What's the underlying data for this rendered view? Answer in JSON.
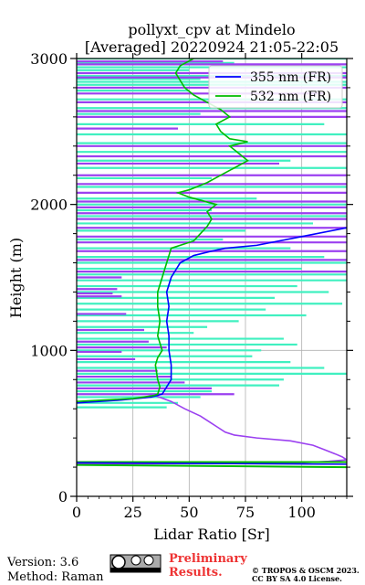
{
  "chart_data": {
    "type": "line",
    "title": "pollyxt_cpv at Mindelo",
    "subtitle": "[Averaged] 20220924 21:05-22:05",
    "xlabel": "Lidar Ratio [Sr]",
    "ylabel": "Height (m)",
    "xlim": [
      0,
      120
    ],
    "ylim": [
      0,
      3000
    ],
    "xticks": [
      "0",
      "25",
      "50",
      "75",
      "100"
    ],
    "yticks": [
      "0",
      "1000",
      "2000",
      "3000"
    ],
    "grid": true,
    "legend_position": "top-right",
    "series": [
      {
        "name": "355 nm (FR)",
        "color": "#0000ff",
        "points": [
          [
            0,
            640
          ],
          [
            20,
            660
          ],
          [
            33,
            680
          ],
          [
            38,
            700
          ],
          [
            40,
            750
          ],
          [
            42,
            800
          ],
          [
            42,
            900
          ],
          [
            41,
            1000
          ],
          [
            41,
            1100
          ],
          [
            40,
            1200
          ],
          [
            41,
            1300
          ],
          [
            40,
            1400
          ],
          [
            42,
            1500
          ],
          [
            44,
            1550
          ],
          [
            46,
            1600
          ],
          [
            52,
            1650
          ],
          [
            60,
            1680
          ],
          [
            66,
            1700
          ],
          [
            80,
            1720
          ],
          [
            100,
            1780
          ],
          [
            120,
            1840
          ]
        ]
      },
      {
        "name": "532 nm (FR)",
        "color": "#00bb00",
        "points": [
          [
            0,
            650
          ],
          [
            25,
            670
          ],
          [
            34,
            690
          ],
          [
            36,
            700
          ],
          [
            37,
            750
          ],
          [
            36,
            800
          ],
          [
            35,
            900
          ],
          [
            36,
            950
          ],
          [
            38,
            1000
          ],
          [
            37,
            1050
          ],
          [
            36,
            1100
          ],
          [
            37,
            1200
          ],
          [
            36,
            1300
          ],
          [
            36,
            1400
          ],
          [
            38,
            1500
          ],
          [
            40,
            1600
          ],
          [
            41,
            1650
          ],
          [
            42,
            1700
          ],
          [
            46,
            1720
          ],
          [
            52,
            1750
          ],
          [
            55,
            1800
          ],
          [
            58,
            1850
          ],
          [
            60,
            1900
          ],
          [
            58,
            1950
          ],
          [
            62,
            2000
          ],
          [
            50,
            2050
          ],
          [
            45,
            2080
          ],
          [
            50,
            2100
          ],
          [
            58,
            2150
          ],
          [
            64,
            2200
          ],
          [
            70,
            2250
          ],
          [
            76,
            2300
          ],
          [
            72,
            2350
          ],
          [
            68,
            2400
          ],
          [
            76,
            2430
          ],
          [
            68,
            2450
          ],
          [
            64,
            2500
          ],
          [
            62,
            2550
          ],
          [
            68,
            2600
          ],
          [
            64,
            2650
          ],
          [
            58,
            2700
          ],
          [
            52,
            2750
          ],
          [
            48,
            2800
          ],
          [
            46,
            2850
          ],
          [
            44,
            2900
          ],
          [
            46,
            2950
          ],
          [
            52,
            3000
          ]
        ]
      }
    ],
    "noise_lines": [
      {
        "color": "#40f0c0",
        "segments": [
          [
            0,
            3000,
            120,
            3000
          ],
          [
            0,
            2970,
            70,
            2970
          ],
          [
            0,
            2940,
            120,
            2940
          ],
          [
            0,
            2920,
            50,
            2920
          ],
          [
            0,
            2880,
            120,
            2880
          ],
          [
            0,
            2860,
            55,
            2860
          ],
          [
            0,
            2840,
            120,
            2840
          ],
          [
            0,
            2820,
            120,
            2820
          ],
          [
            0,
            2780,
            50,
            2780
          ],
          [
            0,
            2720,
            120,
            2720
          ],
          [
            0,
            2660,
            120,
            2660
          ],
          [
            0,
            2620,
            55,
            2620
          ],
          [
            0,
            2550,
            110,
            2550
          ],
          [
            0,
            2480,
            120,
            2480
          ],
          [
            0,
            2420,
            120,
            2420
          ],
          [
            0,
            2360,
            120,
            2360
          ],
          [
            0,
            2300,
            95,
            2300
          ],
          [
            0,
            2250,
            120,
            2250
          ],
          [
            0,
            2180,
            60,
            2180
          ],
          [
            0,
            2120,
            120,
            2120
          ],
          [
            0,
            2040,
            80,
            2040
          ],
          [
            0,
            2000,
            120,
            2000
          ],
          [
            0,
            1960,
            60,
            1960
          ],
          [
            0,
            1920,
            120,
            1920
          ],
          [
            0,
            1870,
            105,
            1870
          ],
          [
            0,
            1820,
            75,
            1820
          ],
          [
            0,
            1760,
            65,
            1760
          ],
          [
            0,
            1700,
            95,
            1700
          ],
          [
            0,
            1640,
            110,
            1640
          ],
          [
            0,
            1600,
            120,
            1600
          ],
          [
            0,
            1560,
            100,
            1560
          ],
          [
            0,
            1520,
            120,
            1520
          ],
          [
            0,
            1480,
            120,
            1480
          ],
          [
            0,
            1440,
            98,
            1440
          ],
          [
            0,
            1400,
            112,
            1400
          ],
          [
            0,
            1360,
            88,
            1360
          ],
          [
            0,
            1320,
            118,
            1320
          ],
          [
            0,
            1280,
            84,
            1280
          ],
          [
            0,
            1240,
            102,
            1240
          ],
          [
            0,
            1200,
            72,
            1200
          ],
          [
            0,
            1160,
            58,
            1160
          ],
          [
            0,
            1120,
            52,
            1120
          ],
          [
            0,
            1080,
            92,
            1080
          ],
          [
            0,
            1040,
            98,
            1040
          ],
          [
            0,
            1000,
            82,
            1000
          ],
          [
            0,
            960,
            78,
            960
          ],
          [
            0,
            920,
            95,
            920
          ],
          [
            0,
            880,
            110,
            880
          ],
          [
            0,
            840,
            120,
            840
          ],
          [
            0,
            800,
            92,
            800
          ],
          [
            0,
            760,
            90,
            760
          ],
          [
            0,
            720,
            60,
            720
          ],
          [
            0,
            680,
            55,
            680
          ],
          [
            0,
            640,
            45,
            640
          ],
          [
            0,
            610,
            40,
            610
          ]
        ]
      },
      {
        "color": "#9b40f0",
        "segments": [
          [
            0,
            2980,
            65,
            2980
          ],
          [
            0,
            2960,
            120,
            2960
          ],
          [
            0,
            2900,
            120,
            2900
          ],
          [
            0,
            2870,
            120,
            2870
          ],
          [
            0,
            2800,
            120,
            2800
          ],
          [
            0,
            2760,
            110,
            2760
          ],
          [
            0,
            2700,
            120,
            2700
          ],
          [
            0,
            2640,
            120,
            2640
          ],
          [
            0,
            2600,
            120,
            2600
          ],
          [
            0,
            2520,
            45,
            2520
          ],
          [
            0,
            2400,
            120,
            2400
          ],
          [
            0,
            2330,
            120,
            2330
          ],
          [
            0,
            2280,
            90,
            2280
          ],
          [
            0,
            2200,
            120,
            2200
          ],
          [
            0,
            2140,
            120,
            2140
          ],
          [
            0,
            2080,
            120,
            2080
          ],
          [
            0,
            2020,
            120,
            2020
          ],
          [
            0,
            1980,
            120,
            1980
          ],
          [
            0,
            1940,
            120,
            1940
          ],
          [
            0,
            1900,
            120,
            1900
          ],
          [
            0,
            1840,
            120,
            1840
          ],
          [
            0,
            1780,
            120,
            1780
          ],
          [
            0,
            1740,
            120,
            1740
          ],
          [
            0,
            1680,
            120,
            1680
          ],
          [
            0,
            1620,
            120,
            1620
          ],
          [
            0,
            1540,
            120,
            1540
          ],
          [
            0,
            1500,
            20,
            1500
          ],
          [
            0,
            1420,
            18,
            1420
          ],
          [
            0,
            1390,
            16,
            1390
          ],
          [
            0,
            1370,
            20,
            1370
          ],
          [
            0,
            1250,
            22,
            1250
          ],
          [
            0,
            1140,
            30,
            1140
          ],
          [
            0,
            1060,
            32,
            1060
          ],
          [
            0,
            1020,
            40,
            1020
          ],
          [
            0,
            990,
            20,
            990
          ],
          [
            0,
            940,
            26,
            940
          ],
          [
            0,
            860,
            36,
            860
          ],
          [
            0,
            820,
            42,
            820
          ],
          [
            0,
            780,
            48,
            780
          ],
          [
            0,
            740,
            60,
            740
          ],
          [
            0,
            700,
            70,
            700
          ]
        ]
      }
    ],
    "purple_profile": [
      [
        35,
        690
      ],
      [
        42,
        650
      ],
      [
        48,
        600
      ],
      [
        55,
        550
      ],
      [
        60,
        500
      ],
      [
        62,
        480
      ],
      [
        66,
        440
      ],
      [
        70,
        420
      ],
      [
        80,
        400
      ],
      [
        95,
        380
      ],
      [
        105,
        350
      ],
      [
        110,
        320
      ],
      [
        115,
        290
      ],
      [
        118,
        270
      ],
      [
        120,
        250
      ],
      [
        112,
        240
      ],
      [
        100,
        230
      ],
      [
        60,
        225
      ],
      [
        0,
        222
      ]
    ],
    "green_tail": [
      [
        0,
        235
      ],
      [
        120,
        235
      ],
      [
        0,
        215
      ],
      [
        120,
        200
      ]
    ],
    "blue_tail": [
      [
        0,
        230
      ],
      [
        120,
        220
      ]
    ]
  },
  "footer": {
    "version": "Version: 3.6",
    "method": "Method: Raman",
    "preliminary_line1": "Preliminary",
    "preliminary_line2": "Results.",
    "copyright_line1": "© TROPOS & OSCM 2023.",
    "copyright_line2": "CC BY SA 4.0 License.",
    "cc_badge": "cc-by-sa-badge"
  }
}
